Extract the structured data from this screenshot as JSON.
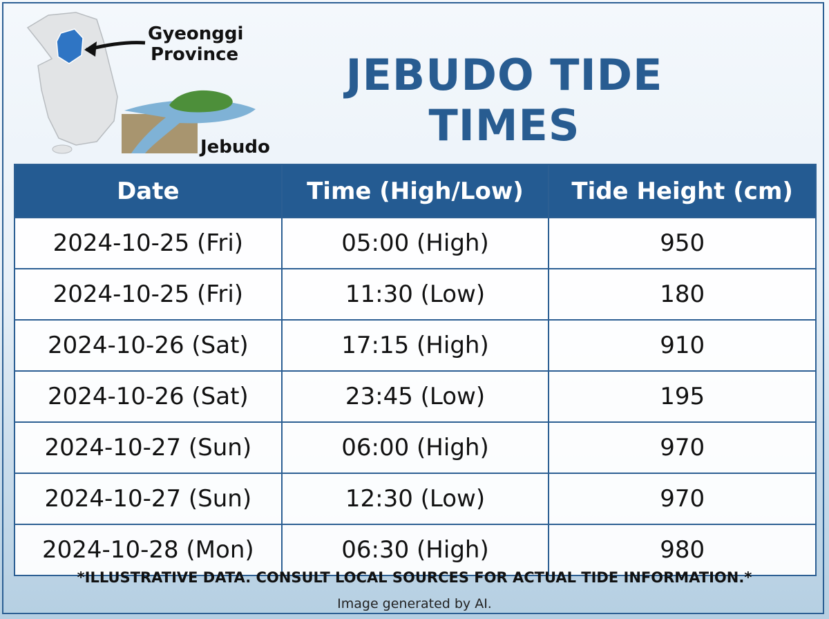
{
  "header": {
    "title": "JEBUDO TIDE TIMES",
    "map_labels": {
      "province": [
        "Gyeonggi",
        "Province"
      ],
      "island": "Jebudo"
    }
  },
  "table": {
    "columns": [
      "Date",
      "Time (High/Low)",
      "Tide Height (cm)"
    ],
    "rows": [
      [
        "2024-10-25 (Fri)",
        "05:00 (High)",
        950
      ],
      [
        "2024-10-25 (Fri)",
        "11:30 (Low)",
        180
      ],
      [
        "2024-10-26 (Sat)",
        "17:15 (High)",
        910
      ],
      [
        "2024-10-26 (Sat)",
        "23:45 (Low)",
        195
      ],
      [
        "2024-10-27 (Sun)",
        "06:00 (High)",
        970
      ],
      [
        "2024-10-27 (Sun)",
        "12:30 (Low)",
        970
      ],
      [
        "2024-10-28 (Mon)",
        "06:30 (High)",
        980
      ]
    ]
  },
  "footer": {
    "disclaimer": "*ILLUSTRATIVE DATA. CONSULT LOCAL SOURCES FOR ACTUAL TIDE INFORMATION.*",
    "credit": "Image generated by AI."
  }
}
